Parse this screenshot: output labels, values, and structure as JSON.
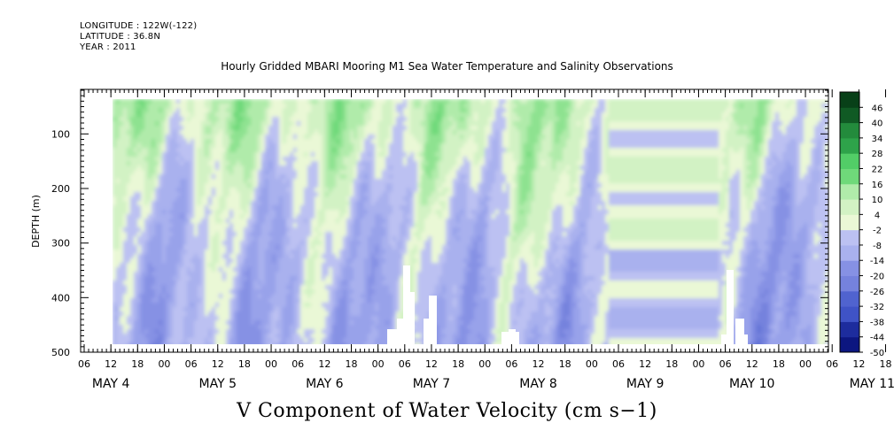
{
  "header": {
    "longitude": "LONGITUDE : 122W(-122)",
    "latitude": "LATITUDE : 36.8N",
    "year": "YEAR : 2011"
  },
  "colors": {
    "positive_ramp": [
      "#eaf8d6",
      "#d2f2c4",
      "#b0ebaa",
      "#8ee290",
      "#6fd97a",
      "#52cd67",
      "#3db859",
      "#2ea34a",
      "#238b3c",
      "#1a7330",
      "#105a24",
      "#084018"
    ],
    "negative_ramp": [
      "#cfd2f6",
      "#bcc1f2",
      "#a9b1ee",
      "#98a2ea",
      "#8691e4",
      "#7582dd",
      "#6272d6",
      "#5063cf",
      "#3f53c6",
      "#2e40b5",
      "#1d2c9d",
      "#0c1680"
    ],
    "missing": "#ffffff"
  },
  "chart_data": {
    "type": "heatmap",
    "title": "Hourly Gridded MBARI Mooring M1 Sea Water Temperature and Salinity Observations",
    "xlabel": "V Component of Water Velocity (cm s−1)",
    "ylabel": "DEPTH (m)",
    "y_ticks": [
      100,
      200,
      300,
      400,
      500
    ],
    "y_range": [
      20,
      500
    ],
    "y_direction": "depth increasing downward",
    "x_hour_ticks": [
      "06",
      "12",
      "18",
      "00",
      "06",
      "12",
      "18",
      "00",
      "06",
      "12",
      "18",
      "00",
      "06",
      "12",
      "18",
      "00",
      "06",
      "12",
      "18",
      "00",
      "06",
      "12",
      "18",
      "00",
      "06",
      "12",
      "18",
      "00",
      "06",
      "12",
      "18",
      "00"
    ],
    "x_day_labels": [
      "MAY  4",
      "MAY  5",
      "MAY  6",
      "MAY  7",
      "MAY  8",
      "MAY  9",
      "MAY 10",
      "MAY 11"
    ],
    "x_range": [
      "2011-05-04 03:00",
      "2011-05-11 12:00"
    ],
    "data_start": "2011-05-04 12:00",
    "data_depth_range": [
      25,
      485
    ],
    "colorbar": {
      "levels": [
        -50,
        -44,
        -38,
        -32,
        -26,
        -20,
        -14,
        -8,
        -2,
        4,
        10,
        16,
        22,
        28,
        34,
        40,
        46
      ],
      "labels": [
        "46",
        "40",
        "34",
        "28",
        "22",
        "16",
        "10",
        "4",
        "-2",
        "-8",
        "-14",
        "-20",
        "-26",
        "-32",
        "-38",
        "-44",
        "-50"
      ]
    },
    "description_values": {
      "upper_layer_0_150m": "mostly positive (4 to 16 cm/s)",
      "lower_layer_200_500m": "mostly negative (-2 to -14 cm/s)",
      "may9_interpolated_block": "horizontal banding, weak values -8 to 8 cm/s"
    }
  }
}
